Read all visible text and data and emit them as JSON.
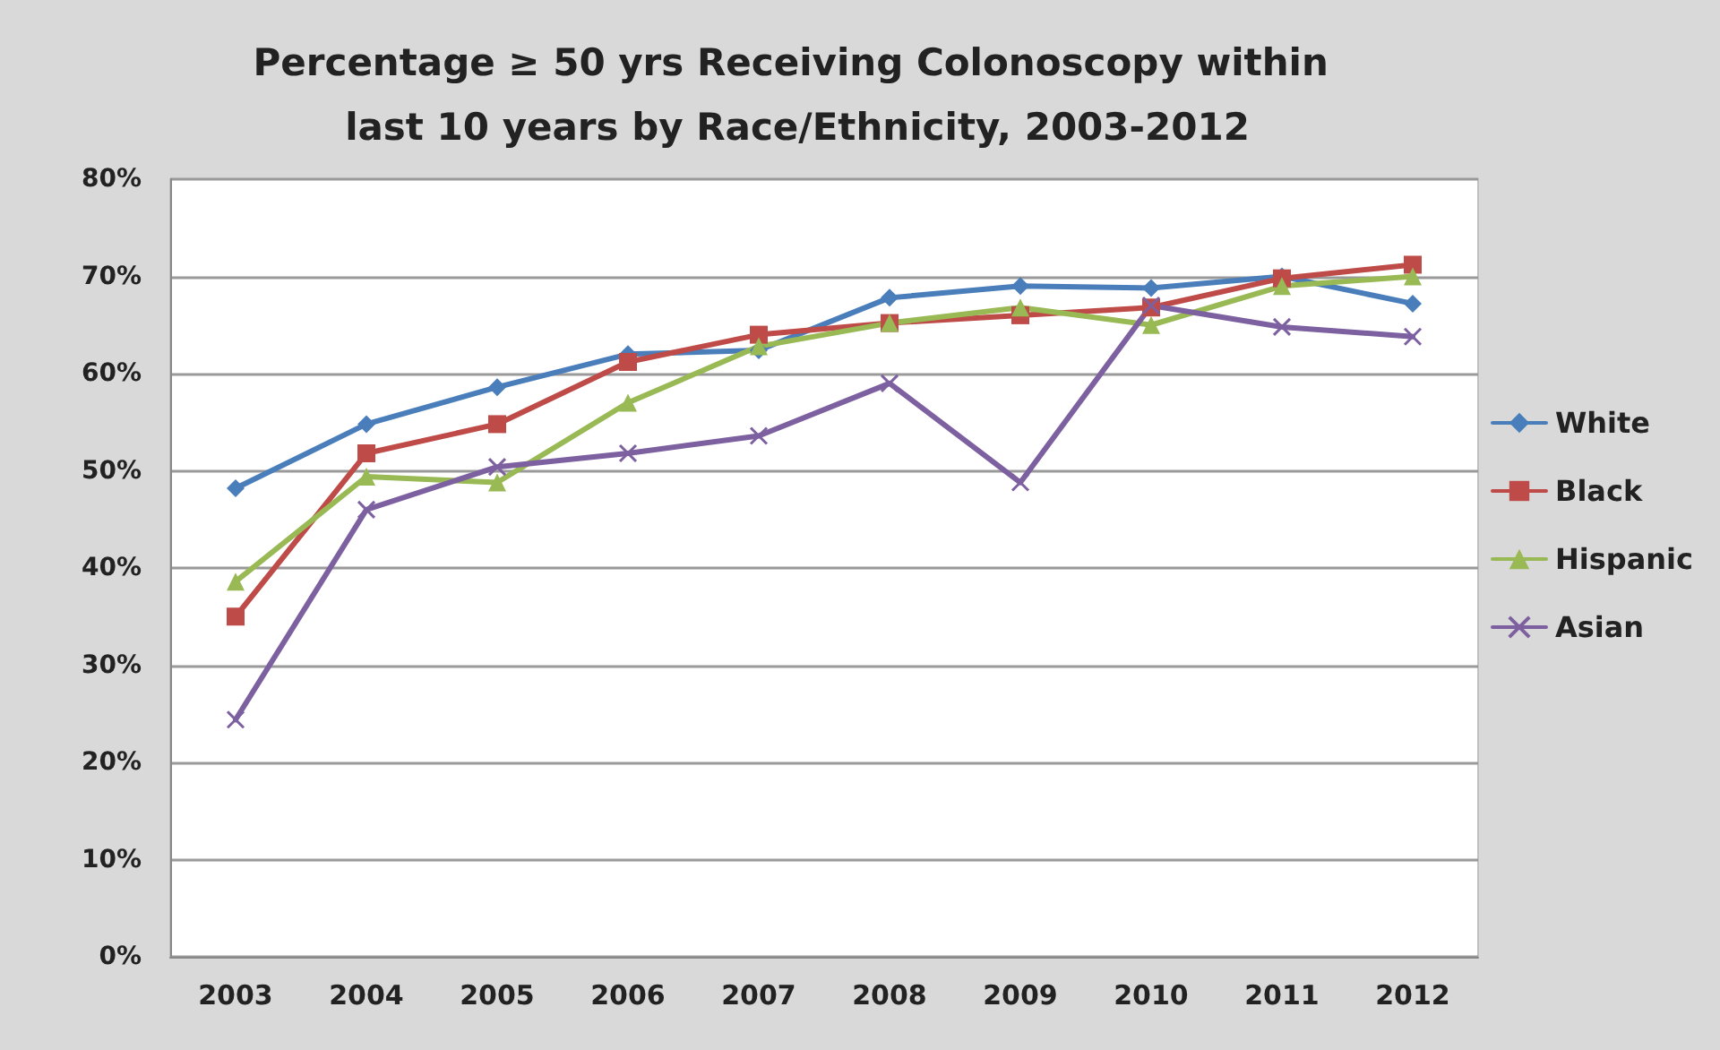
{
  "chart_data": {
    "type": "line",
    "title": "Percentage ≥ 50 yrs Receiving Colonoscopy within last 10 years by Race/Ethnicity, 2003-2012",
    "categories": [
      "2003",
      "2004",
      "2005",
      "2006",
      "2007",
      "2008",
      "2009",
      "2010",
      "2011",
      "2012"
    ],
    "series": [
      {
        "name": "White",
        "color": "#4a7ebb",
        "marker": "diamond",
        "values": [
          48.2,
          54.8,
          58.6,
          62,
          62.4,
          67.8,
          69,
          68.8,
          70,
          67.2
        ]
      },
      {
        "name": "Black",
        "color": "#be4b48",
        "marker": "square",
        "values": [
          35,
          51.8,
          54.8,
          61.2,
          64,
          65.2,
          66,
          66.8,
          69.8,
          71.2
        ]
      },
      {
        "name": "Hispanic",
        "color": "#98b954",
        "marker": "triangle",
        "values": [
          38.6,
          49.4,
          48.8,
          57,
          62.8,
          65.2,
          66.8,
          65,
          69,
          70
        ]
      },
      {
        "name": "Asian",
        "color": "#7d60a0",
        "marker": "cross",
        "values": [
          24.4,
          46,
          50.4,
          51.8,
          53.6,
          59,
          48.8,
          67,
          64.8,
          63.8
        ]
      }
    ],
    "ylim": [
      0,
      80
    ],
    "yticks": [
      {
        "value": 0,
        "label": "0%"
      },
      {
        "value": 10,
        "label": "10%"
      },
      {
        "value": 20,
        "label": "20%"
      },
      {
        "value": 30,
        "label": "30%"
      },
      {
        "value": 40,
        "label": "40%"
      },
      {
        "value": 50,
        "label": "50%"
      },
      {
        "value": 60,
        "label": "60%"
      },
      {
        "value": 70,
        "label": "70%"
      },
      {
        "value": 80,
        "label": "80%"
      }
    ],
    "grid": "y",
    "legend": "right",
    "line_style": "solid"
  }
}
